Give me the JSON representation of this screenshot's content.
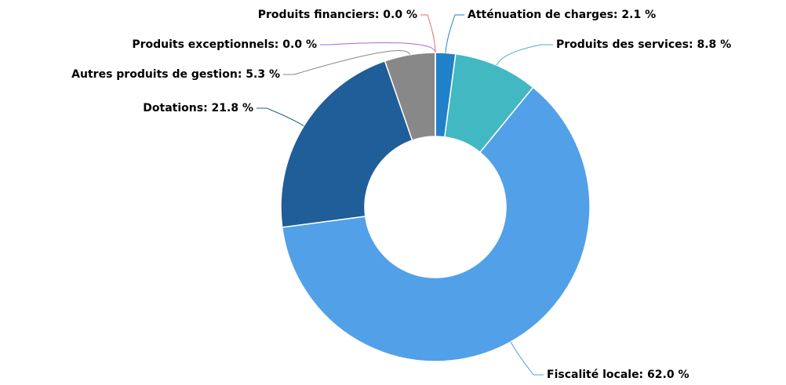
{
  "chart_data": {
    "type": "pie",
    "categories": [
      "Atténuation de charges:",
      "Produits des services:",
      "Fiscalité locale:",
      "Dotations:",
      "Autres produits de gestion:",
      "Produits exceptionnels:",
      "Produits financiers:"
    ],
    "values": [
      2.1,
      8.8,
      62.0,
      21.8,
      5.3,
      0.0,
      0.0
    ],
    "value_labels": [
      "2.1 %",
      "8.8 %",
      "62.0 %",
      "21.8 %",
      "5.3 %",
      "0.0 %",
      "0.0 %"
    ],
    "colors": [
      "#2080c8",
      "#42b8c2",
      "#52a0e8",
      "#1f5e99",
      "#888888",
      "#a865e0",
      "#e86a6a"
    ],
    "donut": true
  }
}
